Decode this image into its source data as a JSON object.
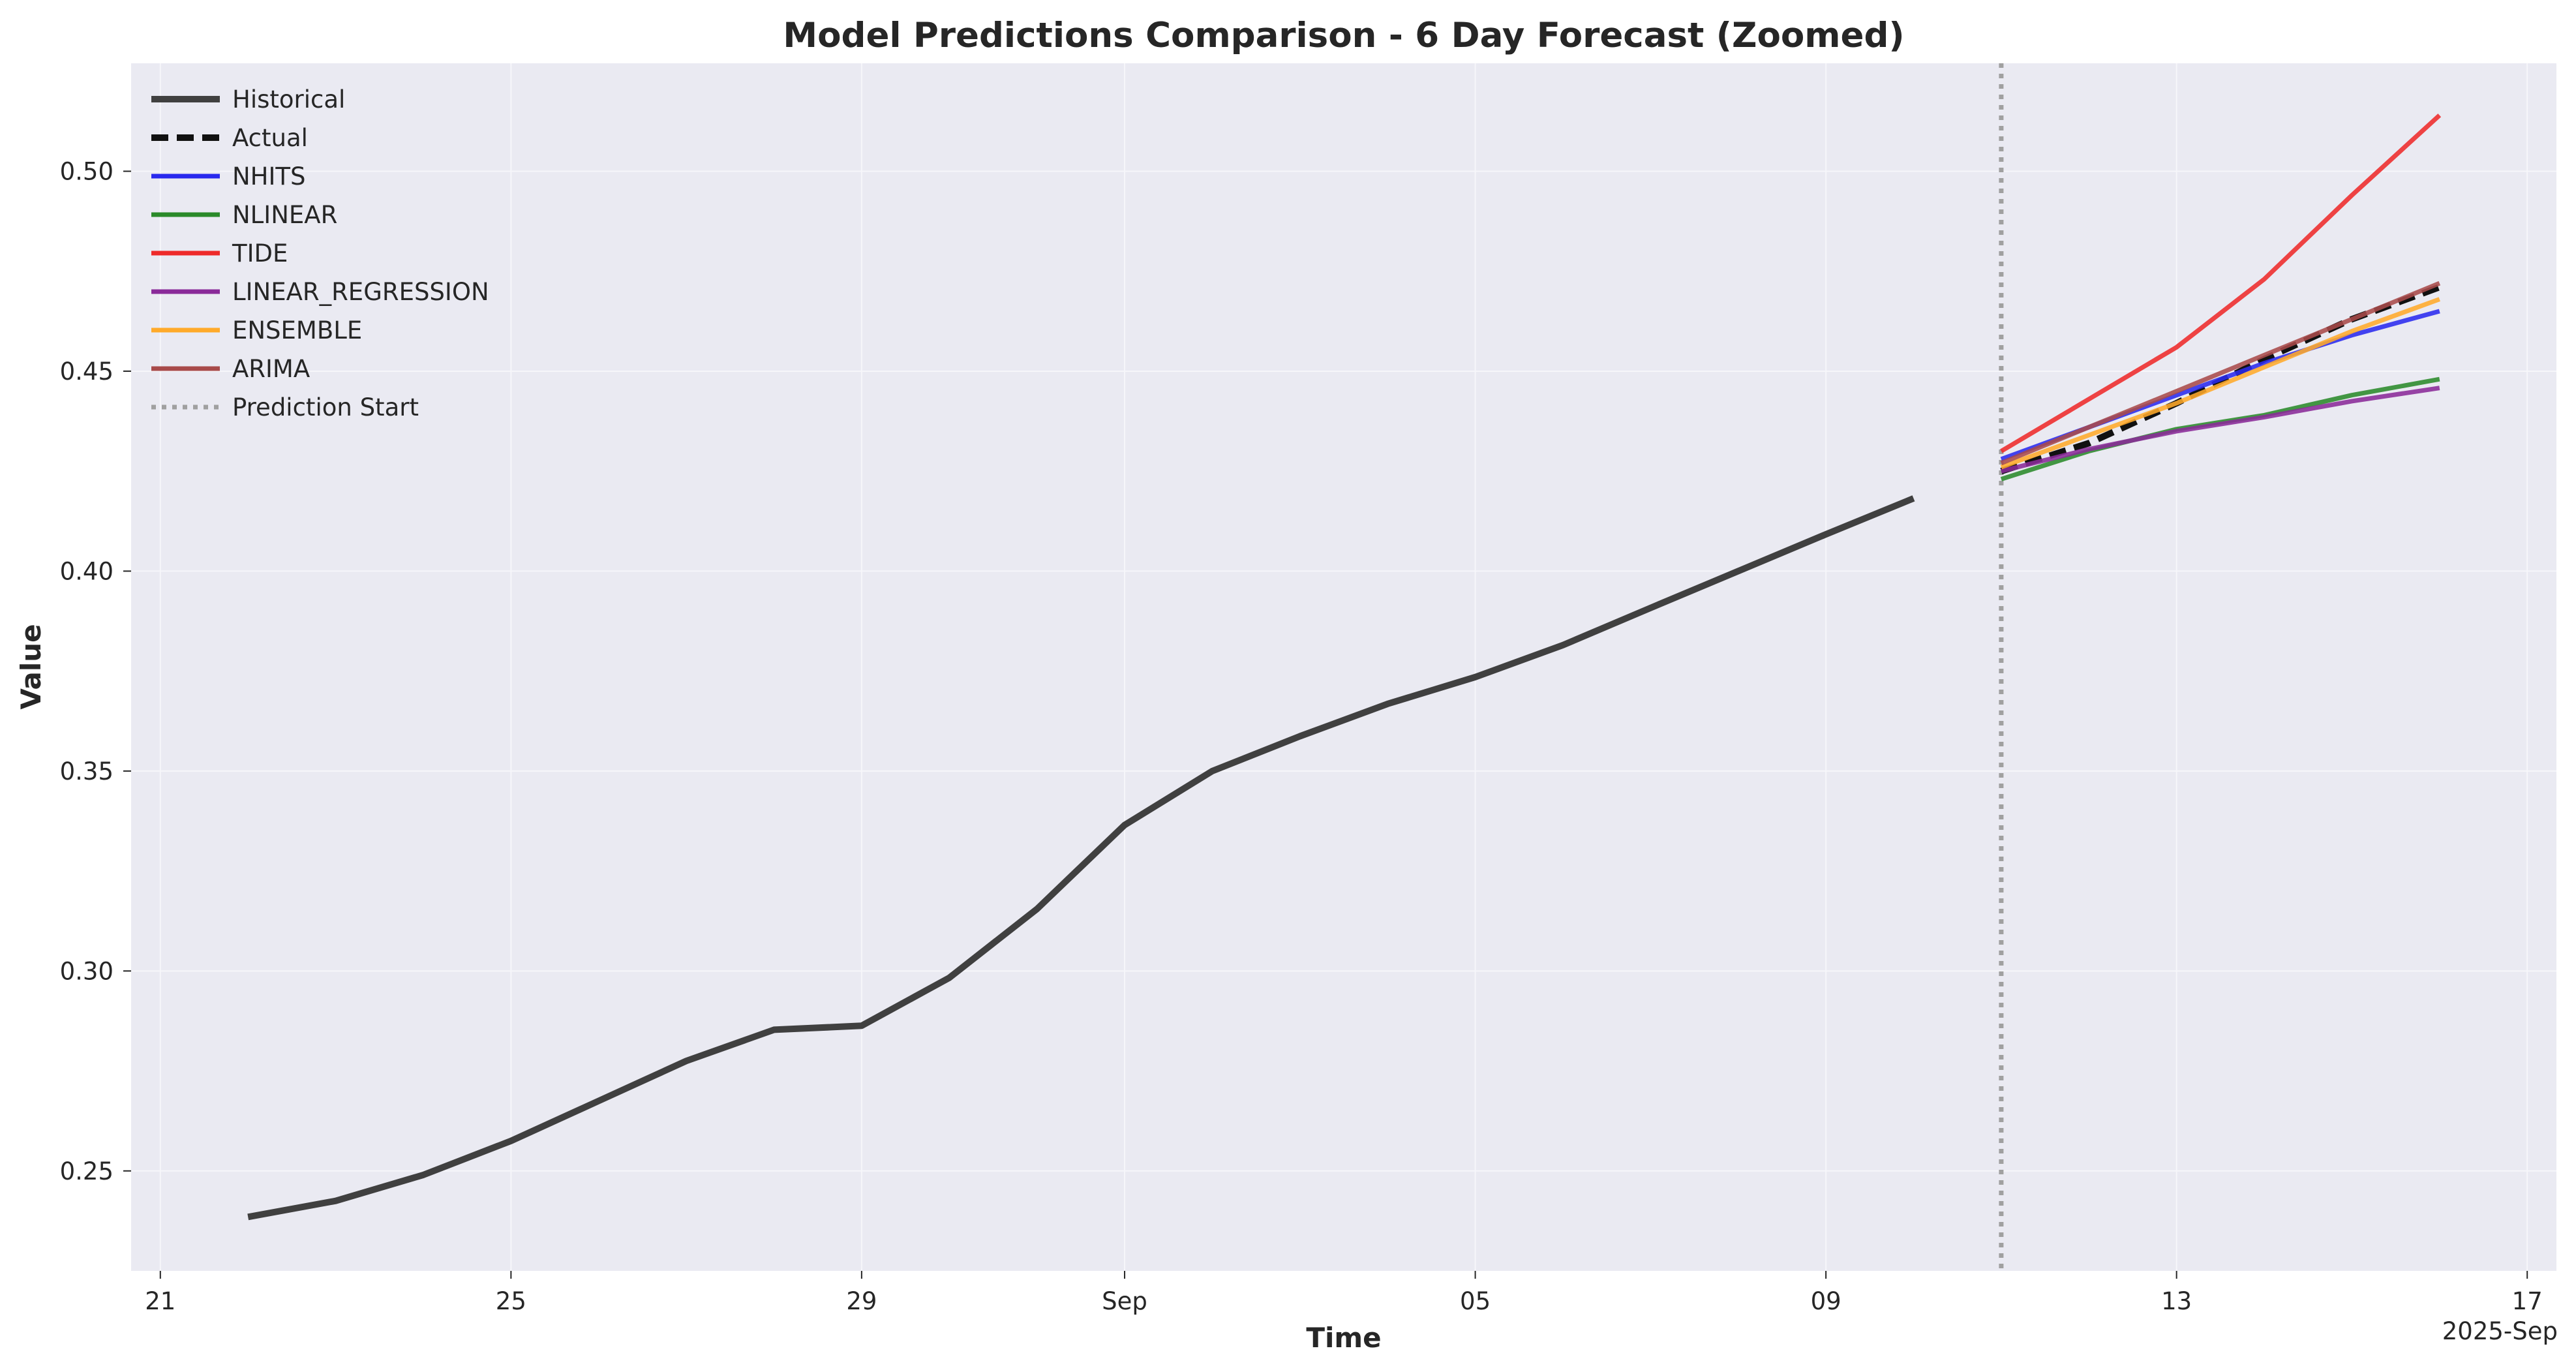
{
  "chart_data": {
    "type": "line",
    "title": "Model Predictions Comparison - 6 Day Forecast (Zoomed)",
    "xlabel": "Time",
    "ylabel": "Value",
    "x_axis_offset_label": "2025-Sep",
    "xlim": [
      "2025-08-20T16:00",
      "2025-09-17T08:00"
    ],
    "ylim": [
      0.225,
      0.527
    ],
    "grid": true,
    "legend_location": "top-left",
    "x_ticks": [
      {
        "date": "2025-08-21",
        "label": "21"
      },
      {
        "date": "2025-08-25",
        "label": "25"
      },
      {
        "date": "2025-08-29",
        "label": "29"
      },
      {
        "date": "2025-09-01",
        "label": "Sep"
      },
      {
        "date": "2025-09-05",
        "label": "05"
      },
      {
        "date": "2025-09-09",
        "label": "09"
      },
      {
        "date": "2025-09-13",
        "label": "13"
      },
      {
        "date": "2025-09-17",
        "label": "17"
      }
    ],
    "y_ticks": [
      {
        "value": 0.25,
        "label": "0.25"
      },
      {
        "value": 0.3,
        "label": "0.30"
      },
      {
        "value": 0.35,
        "label": "0.35"
      },
      {
        "value": 0.4,
        "label": "0.40"
      },
      {
        "value": 0.45,
        "label": "0.45"
      },
      {
        "value": 0.5,
        "label": "0.50"
      }
    ],
    "prediction_start": "2025-09-11",
    "series": [
      {
        "name": "Historical",
        "color": "#404040",
        "style": "solid",
        "weight": "thick",
        "x": [
          "2025-08-22",
          "2025-08-23",
          "2025-08-24",
          "2025-08-25",
          "2025-08-26",
          "2025-08-27",
          "2025-08-28",
          "2025-08-29",
          "2025-08-30",
          "2025-08-31",
          "2025-09-01",
          "2025-09-02",
          "2025-09-03",
          "2025-09-04",
          "2025-09-05",
          "2025-09-06",
          "2025-09-07",
          "2025-09-08",
          "2025-09-09",
          "2025-09-10"
        ],
        "values": [
          0.2385,
          0.2425,
          0.249,
          0.2575,
          0.2675,
          0.2775,
          0.2853,
          0.2863,
          0.2983,
          0.3155,
          0.3365,
          0.35,
          0.3587,
          0.3668,
          0.3735,
          0.3815,
          0.3908,
          0.4,
          0.4092,
          0.4182
        ]
      },
      {
        "name": "Actual",
        "color": "#111111",
        "style": "dashed",
        "weight": "thick",
        "x": [
          "2025-09-11",
          "2025-09-12",
          "2025-09-13",
          "2025-09-14",
          "2025-09-15",
          "2025-09-16"
        ],
        "values": [
          0.425,
          0.432,
          0.442,
          0.453,
          0.463,
          0.471
        ]
      },
      {
        "name": "NHITS",
        "color": "#2a2aee",
        "style": "solid",
        "weight": "normal",
        "x": [
          "2025-09-11",
          "2025-09-12",
          "2025-09-13",
          "2025-09-14",
          "2025-09-15",
          "2025-09-16"
        ],
        "values": [
          0.428,
          0.436,
          0.444,
          0.452,
          0.459,
          0.465
        ]
      },
      {
        "name": "NLINEAR",
        "color": "#2a8a2a",
        "style": "solid",
        "weight": "normal",
        "x": [
          "2025-09-11",
          "2025-09-12",
          "2025-09-13",
          "2025-09-14",
          "2025-09-15",
          "2025-09-16"
        ],
        "values": [
          0.423,
          0.43,
          0.4355,
          0.439,
          0.444,
          0.448
        ]
      },
      {
        "name": "TIDE",
        "color": "#ee2a2a",
        "style": "solid",
        "weight": "normal",
        "x": [
          "2025-09-11",
          "2025-09-12",
          "2025-09-13",
          "2025-09-14",
          "2025-09-15",
          "2025-09-16"
        ],
        "values": [
          0.43,
          0.443,
          0.456,
          0.473,
          0.494,
          0.514
        ]
      },
      {
        "name": "LINEAR_REGRESSION",
        "color": "#8a2a99",
        "style": "solid",
        "weight": "normal",
        "x": [
          "2025-09-11",
          "2025-09-12",
          "2025-09-13",
          "2025-09-14",
          "2025-09-15",
          "2025-09-16"
        ],
        "values": [
          0.425,
          0.4305,
          0.435,
          0.4385,
          0.4425,
          0.4458
        ]
      },
      {
        "name": "ENSEMBLE",
        "color": "#ffaa2a",
        "style": "solid",
        "weight": "normal",
        "x": [
          "2025-09-11",
          "2025-09-12",
          "2025-09-13",
          "2025-09-14",
          "2025-09-15",
          "2025-09-16"
        ],
        "values": [
          0.426,
          0.434,
          0.442,
          0.451,
          0.46,
          0.468
        ]
      },
      {
        "name": "ARIMA",
        "color": "#a84a4a",
        "style": "solid",
        "weight": "normal",
        "x": [
          "2025-09-11",
          "2025-09-12",
          "2025-09-13",
          "2025-09-14",
          "2025-09-15",
          "2025-09-16"
        ],
        "values": [
          0.427,
          0.436,
          0.445,
          0.454,
          0.463,
          0.472
        ]
      }
    ],
    "legend": [
      {
        "label": "Historical",
        "color": "#404040",
        "style": "solid",
        "weight": "thick"
      },
      {
        "label": "Actual",
        "color": "#111111",
        "style": "dashed",
        "weight": "thick"
      },
      {
        "label": "NHITS",
        "color": "#2a2aee",
        "style": "solid",
        "weight": "normal"
      },
      {
        "label": "NLINEAR",
        "color": "#2a8a2a",
        "style": "solid",
        "weight": "normal"
      },
      {
        "label": "TIDE",
        "color": "#ee2a2a",
        "style": "solid",
        "weight": "normal"
      },
      {
        "label": "LINEAR_REGRESSION",
        "color": "#8a2a99",
        "style": "solid",
        "weight": "normal"
      },
      {
        "label": "ENSEMBLE",
        "color": "#ffaa2a",
        "style": "solid",
        "weight": "normal"
      },
      {
        "label": "ARIMA",
        "color": "#a84a4a",
        "style": "solid",
        "weight": "normal"
      },
      {
        "label": "Prediction Start",
        "color": "#a0a0a0",
        "style": "dotted",
        "weight": "normal"
      }
    ],
    "colors": {
      "plot_background": "#eaeaf2",
      "grid": "#f6f6fa",
      "prediction_start_line": "#a0a0a0"
    }
  }
}
